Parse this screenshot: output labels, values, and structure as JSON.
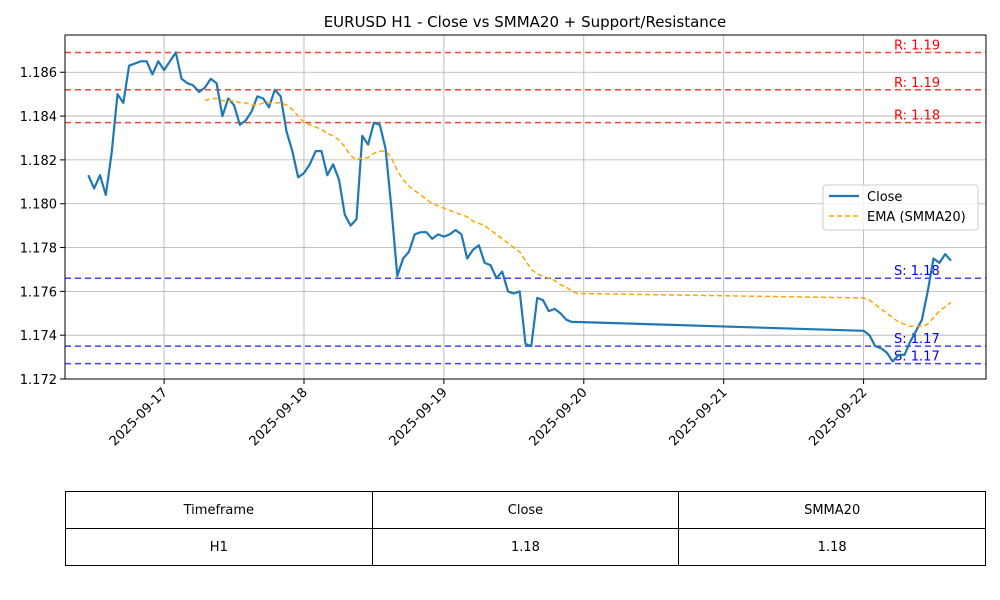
{
  "chart_data": {
    "type": "line",
    "title": "EURUSD H1 - Close vs SMMA20 + Support/Resistance",
    "xlabel": "",
    "ylabel": "",
    "x_ticks": [
      "2025-09-17",
      "2025-09-18",
      "2025-09-19",
      "2025-09-20",
      "2025-09-21",
      "2025-09-22"
    ],
    "xlim": [
      "2025-09-16T07:00",
      "2025-09-22T21:00"
    ],
    "y_ticks": [
      "1.172",
      "1.174",
      "1.176",
      "1.178",
      "1.180",
      "1.182",
      "1.184",
      "1.186"
    ],
    "ylim": [
      1.172,
      1.1877
    ],
    "grid": true,
    "legend_position": "center-right",
    "series": [
      {
        "name": "Close",
        "color": "#1f77b4",
        "style": "solid",
        "points": [
          [
            "2025-09-16T11:00",
            1.1813
          ],
          [
            "2025-09-16T12:00",
            1.1807
          ],
          [
            "2025-09-16T13:00",
            1.1813
          ],
          [
            "2025-09-16T14:00",
            1.1804
          ],
          [
            "2025-09-16T15:00",
            1.1823
          ],
          [
            "2025-09-16T16:00",
            1.185
          ],
          [
            "2025-09-16T17:00",
            1.1846
          ],
          [
            "2025-09-16T18:00",
            1.1863
          ],
          [
            "2025-09-16T19:00",
            1.1864
          ],
          [
            "2025-09-16T20:00",
            1.1865
          ],
          [
            "2025-09-16T21:00",
            1.1865
          ],
          [
            "2025-09-16T22:00",
            1.1859
          ],
          [
            "2025-09-16T23:00",
            1.1865
          ],
          [
            "2025-09-17T00:00",
            1.1861
          ],
          [
            "2025-09-17T01:00",
            1.1865
          ],
          [
            "2025-09-17T02:00",
            1.1869
          ],
          [
            "2025-09-17T03:00",
            1.1857
          ],
          [
            "2025-09-17T04:00",
            1.1855
          ],
          [
            "2025-09-17T05:00",
            1.1854
          ],
          [
            "2025-09-17T06:00",
            1.1851
          ],
          [
            "2025-09-17T07:00",
            1.1853
          ],
          [
            "2025-09-17T08:00",
            1.1857
          ],
          [
            "2025-09-17T09:00",
            1.1855
          ],
          [
            "2025-09-17T10:00",
            1.184
          ],
          [
            "2025-09-17T11:00",
            1.1848
          ],
          [
            "2025-09-17T12:00",
            1.1845
          ],
          [
            "2025-09-17T13:00",
            1.1836
          ],
          [
            "2025-09-17T14:00",
            1.1838
          ],
          [
            "2025-09-17T15:00",
            1.1842
          ],
          [
            "2025-09-17T16:00",
            1.1849
          ],
          [
            "2025-09-17T17:00",
            1.1848
          ],
          [
            "2025-09-17T18:00",
            1.1844
          ],
          [
            "2025-09-17T19:00",
            1.1852
          ],
          [
            "2025-09-17T20:00",
            1.1849
          ],
          [
            "2025-09-17T21:00",
            1.1833
          ],
          [
            "2025-09-17T22:00",
            1.1824
          ],
          [
            "2025-09-17T23:00",
            1.1812
          ],
          [
            "2025-09-18T00:00",
            1.1814
          ],
          [
            "2025-09-18T01:00",
            1.1818
          ],
          [
            "2025-09-18T02:00",
            1.1824
          ],
          [
            "2025-09-18T03:00",
            1.1824
          ],
          [
            "2025-09-18T04:00",
            1.1813
          ],
          [
            "2025-09-18T05:00",
            1.1818
          ],
          [
            "2025-09-18T06:00",
            1.1811
          ],
          [
            "2025-09-18T07:00",
            1.1795
          ],
          [
            "2025-09-18T08:00",
            1.179
          ],
          [
            "2025-09-18T09:00",
            1.1793
          ],
          [
            "2025-09-18T10:00",
            1.1831
          ],
          [
            "2025-09-18T11:00",
            1.1827
          ],
          [
            "2025-09-18T12:00",
            1.1837
          ],
          [
            "2025-09-18T13:00",
            1.1836
          ],
          [
            "2025-09-18T14:00",
            1.1825
          ],
          [
            "2025-09-18T15:00",
            1.1798
          ],
          [
            "2025-09-18T16:00",
            1.1767
          ],
          [
            "2025-09-18T17:00",
            1.1775
          ],
          [
            "2025-09-18T18:00",
            1.1778
          ],
          [
            "2025-09-18T19:00",
            1.1786
          ],
          [
            "2025-09-18T20:00",
            1.1787
          ],
          [
            "2025-09-18T21:00",
            1.1787
          ],
          [
            "2025-09-18T22:00",
            1.1784
          ],
          [
            "2025-09-18T23:00",
            1.1786
          ],
          [
            "2025-09-19T00:00",
            1.1785
          ],
          [
            "2025-09-19T01:00",
            1.1786
          ],
          [
            "2025-09-19T02:00",
            1.1788
          ],
          [
            "2025-09-19T03:00",
            1.1786
          ],
          [
            "2025-09-19T04:00",
            1.1775
          ],
          [
            "2025-09-19T05:00",
            1.1779
          ],
          [
            "2025-09-19T06:00",
            1.1781
          ],
          [
            "2025-09-19T07:00",
            1.1773
          ],
          [
            "2025-09-19T08:00",
            1.1772
          ],
          [
            "2025-09-19T09:00",
            1.1766
          ],
          [
            "2025-09-19T10:00",
            1.1769
          ],
          [
            "2025-09-19T11:00",
            1.176
          ],
          [
            "2025-09-19T12:00",
            1.1759
          ],
          [
            "2025-09-19T13:00",
            1.176
          ],
          [
            "2025-09-19T14:00",
            1.1736
          ],
          [
            "2025-09-19T15:00",
            1.1735
          ],
          [
            "2025-09-19T16:00",
            1.1757
          ],
          [
            "2025-09-19T17:00",
            1.1756
          ],
          [
            "2025-09-19T18:00",
            1.1751
          ],
          [
            "2025-09-19T19:00",
            1.1752
          ],
          [
            "2025-09-19T20:00",
            1.175
          ],
          [
            "2025-09-19T21:00",
            1.1747
          ],
          [
            "2025-09-19T22:00",
            1.1746
          ],
          [
            "2025-09-19T23:00",
            1.1746
          ],
          [
            "2025-09-22T00:00",
            1.1742
          ],
          [
            "2025-09-22T01:00",
            1.174
          ],
          [
            "2025-09-22T02:00",
            1.1735
          ],
          [
            "2025-09-22T03:00",
            1.1734
          ],
          [
            "2025-09-22T04:00",
            1.1732
          ],
          [
            "2025-09-22T05:00",
            1.1728
          ],
          [
            "2025-09-22T06:00",
            1.1731
          ],
          [
            "2025-09-22T07:00",
            1.1731
          ],
          [
            "2025-09-22T08:00",
            1.1737
          ],
          [
            "2025-09-22T09:00",
            1.1742
          ],
          [
            "2025-09-22T10:00",
            1.1747
          ],
          [
            "2025-09-22T11:00",
            1.176
          ],
          [
            "2025-09-22T12:00",
            1.1775
          ],
          [
            "2025-09-22T13:00",
            1.1773
          ],
          [
            "2025-09-22T14:00",
            1.1777
          ],
          [
            "2025-09-22T15:00",
            1.1774
          ]
        ]
      },
      {
        "name": "EMA (SMMA20)",
        "color": "#ffa500",
        "style": "dashed",
        "points": [
          [
            "2025-09-17T07:00",
            1.1847
          ],
          [
            "2025-09-17T08:00",
            1.1848
          ],
          [
            "2025-09-17T09:00",
            1.1848
          ],
          [
            "2025-09-17T10:00",
            1.1847
          ],
          [
            "2025-09-17T11:00",
            1.1847
          ],
          [
            "2025-09-17T12:00",
            1.1847
          ],
          [
            "2025-09-17T13:00",
            1.1846
          ],
          [
            "2025-09-17T14:00",
            1.1846
          ],
          [
            "2025-09-17T15:00",
            1.1845
          ],
          [
            "2025-09-17T16:00",
            1.1845
          ],
          [
            "2025-09-17T17:00",
            1.1846
          ],
          [
            "2025-09-17T18:00",
            1.1846
          ],
          [
            "2025-09-17T19:00",
            1.1846
          ],
          [
            "2025-09-17T20:00",
            1.1846
          ],
          [
            "2025-09-17T21:00",
            1.1845
          ],
          [
            "2025-09-17T22:00",
            1.1843
          ],
          [
            "2025-09-17T23:00",
            1.184
          ],
          [
            "2025-09-18T00:00",
            1.1837
          ],
          [
            "2025-09-18T01:00",
            1.1836
          ],
          [
            "2025-09-18T02:00",
            1.1835
          ],
          [
            "2025-09-18T03:00",
            1.1834
          ],
          [
            "2025-09-18T04:00",
            1.1832
          ],
          [
            "2025-09-18T05:00",
            1.1831
          ],
          [
            "2025-09-18T06:00",
            1.1829
          ],
          [
            "2025-09-18T07:00",
            1.1826
          ],
          [
            "2025-09-18T08:00",
            1.1822
          ],
          [
            "2025-09-18T09:00",
            1.182
          ],
          [
            "2025-09-18T10:00",
            1.1821
          ],
          [
            "2025-09-18T11:00",
            1.1821
          ],
          [
            "2025-09-18T12:00",
            1.1823
          ],
          [
            "2025-09-18T13:00",
            1.1824
          ],
          [
            "2025-09-18T14:00",
            1.1824
          ],
          [
            "2025-09-18T15:00",
            1.1821
          ],
          [
            "2025-09-18T16:00",
            1.1815
          ],
          [
            "2025-09-18T17:00",
            1.1811
          ],
          [
            "2025-09-18T18:00",
            1.1808
          ],
          [
            "2025-09-18T19:00",
            1.1806
          ],
          [
            "2025-09-18T20:00",
            1.1804
          ],
          [
            "2025-09-18T21:00",
            1.1802
          ],
          [
            "2025-09-18T22:00",
            1.18
          ],
          [
            "2025-09-18T23:00",
            1.1799
          ],
          [
            "2025-09-19T00:00",
            1.1798
          ],
          [
            "2025-09-19T01:00",
            1.1797
          ],
          [
            "2025-09-19T02:00",
            1.1796
          ],
          [
            "2025-09-19T03:00",
            1.1795
          ],
          [
            "2025-09-19T04:00",
            1.1794
          ],
          [
            "2025-09-19T05:00",
            1.1792
          ],
          [
            "2025-09-19T06:00",
            1.1791
          ],
          [
            "2025-09-19T07:00",
            1.179
          ],
          [
            "2025-09-19T08:00",
            1.1788
          ],
          [
            "2025-09-19T09:00",
            1.1786
          ],
          [
            "2025-09-19T10:00",
            1.1784
          ],
          [
            "2025-09-19T11:00",
            1.1782
          ],
          [
            "2025-09-19T12:00",
            1.178
          ],
          [
            "2025-09-19T13:00",
            1.1778
          ],
          [
            "2025-09-19T14:00",
            1.1774
          ],
          [
            "2025-09-19T15:00",
            1.177
          ],
          [
            "2025-09-19T16:00",
            1.1768
          ],
          [
            "2025-09-19T17:00",
            1.1767
          ],
          [
            "2025-09-19T18:00",
            1.1766
          ],
          [
            "2025-09-19T19:00",
            1.1765
          ],
          [
            "2025-09-19T20:00",
            1.1763
          ],
          [
            "2025-09-19T21:00",
            1.1762
          ],
          [
            "2025-09-19T22:00",
            1.176
          ],
          [
            "2025-09-19T23:00",
            1.1759
          ],
          [
            "2025-09-22T00:00",
            1.1757
          ],
          [
            "2025-09-22T01:00",
            1.1756
          ],
          [
            "2025-09-22T02:00",
            1.1754
          ],
          [
            "2025-09-22T03:00",
            1.1752
          ],
          [
            "2025-09-22T04:00",
            1.175
          ],
          [
            "2025-09-22T05:00",
            1.1748
          ],
          [
            "2025-09-22T06:00",
            1.1746
          ],
          [
            "2025-09-22T07:00",
            1.1745
          ],
          [
            "2025-09-22T08:00",
            1.1744
          ],
          [
            "2025-09-22T09:00",
            1.1744
          ],
          [
            "2025-09-22T10:00",
            1.1744
          ],
          [
            "2025-09-22T11:00",
            1.1745
          ],
          [
            "2025-09-22T12:00",
            1.1748
          ],
          [
            "2025-09-22T13:00",
            1.1751
          ],
          [
            "2025-09-22T14:00",
            1.1753
          ],
          [
            "2025-09-22T15:00",
            1.1755
          ]
        ]
      }
    ],
    "resistance_lines": [
      {
        "label": "R: 1.19",
        "value": 1.1869
      },
      {
        "label": "R: 1.19",
        "value": 1.1852
      },
      {
        "label": "R: 1.18",
        "value": 1.1837
      }
    ],
    "support_lines": [
      {
        "label": "S: 1.18",
        "value": 1.1766
      },
      {
        "label": "S: 1.17",
        "value": 1.1735
      },
      {
        "label": "S: 1.17",
        "value": 1.1727
      }
    ],
    "resistance_color": "#ff0000",
    "support_color": "#0000ff"
  },
  "table": {
    "headers": [
      "Timeframe",
      "Close",
      "SMMA20"
    ],
    "rows": [
      [
        "H1",
        "1.18",
        "1.18"
      ]
    ]
  }
}
